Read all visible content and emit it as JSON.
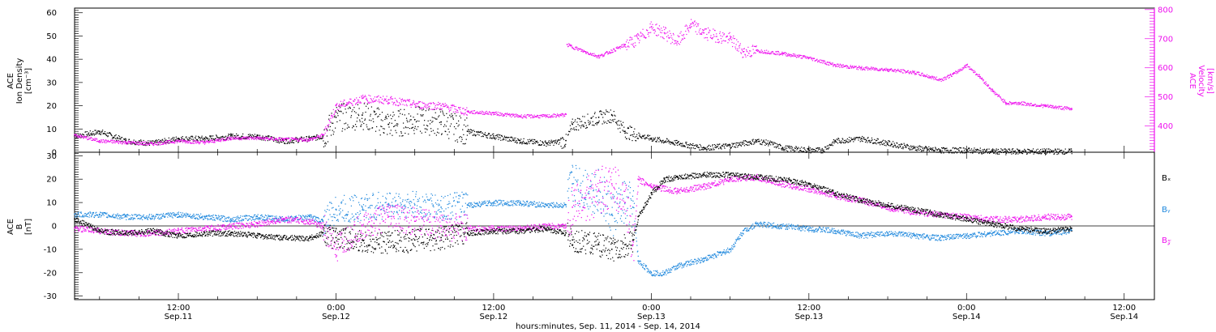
{
  "colors": {
    "black": "#000000",
    "magenta": "#ee11ee",
    "blue": "#1f88dd",
    "axis": "#000000"
  },
  "xlabel": "hours:minutes, Sep. 11, 2014 - Sep. 14, 2014",
  "x_ticks": [
    {
      "hours": 12,
      "time": "12:00",
      "date": "Sep.11"
    },
    {
      "hours": 24,
      "time": "0:00",
      "date": "Sep.12"
    },
    {
      "hours": 36,
      "time": "12:00",
      "date": "Sep.12"
    },
    {
      "hours": 48,
      "time": "0:00",
      "date": "Sep.13"
    },
    {
      "hours": 60,
      "time": "12:00",
      "date": "Sep.13"
    },
    {
      "hours": 72,
      "time": "0:00",
      "date": "Sep.14"
    },
    {
      "hours": 84,
      "time": "12:00",
      "date": "Sep.14"
    }
  ],
  "top_panel": {
    "left_axis_label_lines": [
      "ACE",
      "Ion Density",
      "[cm⁻³]"
    ],
    "right_axis_label_lines": [
      "ACE",
      "Velocity",
      "[km/s]"
    ]
  },
  "bottom_panel": {
    "axis_label_lines": [
      "ACE",
      "B",
      "[nT]"
    ],
    "legend": [
      {
        "label": "Bₓ",
        "color": "#000000"
      },
      {
        "label": "Bᵧ",
        "color": "#1f88dd"
      },
      {
        "label": "B𝓏",
        "color": "#ee11ee"
      }
    ]
  },
  "chart_data": [
    {
      "type": "scatter",
      "x_units": "hours since Sep. 11, 2014 00:00",
      "xlim": [
        4.1,
        86.3
      ],
      "left_ylim": [
        0,
        62
      ],
      "left_yticks": [
        0,
        10,
        20,
        30,
        40,
        50,
        60
      ],
      "right_ylim": [
        310,
        805
      ],
      "right_yticks": [
        400,
        500,
        600,
        700,
        800
      ],
      "series": [
        {
          "axis": "left",
          "color": "#000000",
          "points": [
            [
              4.1,
              7
            ],
            [
              6,
              9
            ],
            [
              8,
              5
            ],
            [
              10,
              4
            ],
            [
              12,
              6
            ],
            [
              14,
              6
            ],
            [
              16,
              7
            ],
            [
              18,
              7
            ],
            [
              20,
              5
            ],
            [
              22,
              6
            ],
            [
              23,
              7
            ],
            [
              24,
              15
            ],
            [
              26,
              16
            ],
            [
              28,
              12
            ],
            [
              30,
              14
            ],
            [
              32,
              13
            ],
            [
              34,
              9
            ],
            [
              36,
              7
            ],
            [
              38,
              5
            ],
            [
              40,
              4
            ],
            [
              41.5,
              5
            ],
            [
              42,
              12
            ],
            [
              44,
              15
            ],
            [
              45,
              16
            ],
            [
              46,
              9
            ],
            [
              48,
              6
            ],
            [
              50,
              4
            ],
            [
              52,
              2
            ],
            [
              54,
              3
            ],
            [
              56,
              5
            ],
            [
              57,
              4
            ],
            [
              58,
              2
            ],
            [
              60,
              1
            ],
            [
              61,
              1
            ],
            [
              62,
              5
            ],
            [
              64,
              6
            ],
            [
              66,
              4
            ],
            [
              68,
              2
            ],
            [
              70,
              1
            ],
            [
              72,
              1
            ],
            [
              74,
              0.5
            ],
            [
              76,
              0.5
            ],
            [
              78,
              0.5
            ],
            [
              80,
              0.5
            ]
          ]
        },
        {
          "axis": "right",
          "color": "#ee11ee",
          "points": [
            [
              4.1,
              370
            ],
            [
              6,
              350
            ],
            [
              8,
              345
            ],
            [
              10,
              340
            ],
            [
              12,
              350
            ],
            [
              14,
              345
            ],
            [
              16,
              360
            ],
            [
              18,
              360
            ],
            [
              20,
              355
            ],
            [
              22,
              355
            ],
            [
              23,
              370
            ],
            [
              24,
              470
            ],
            [
              26,
              495
            ],
            [
              28,
              490
            ],
            [
              30,
              475
            ],
            [
              32,
              470
            ],
            [
              34,
              450
            ],
            [
              36,
              445
            ],
            [
              38,
              435
            ],
            [
              40,
              435
            ],
            [
              41.5,
              440
            ],
            [
              41.6,
              680
            ],
            [
              43,
              655
            ],
            [
              44,
              640
            ],
            [
              46,
              680
            ],
            [
              47,
              700
            ],
            [
              48,
              740
            ],
            [
              49,
              720
            ],
            [
              50,
              690
            ],
            [
              51,
              750
            ],
            [
              52,
              720
            ],
            [
              54,
              700
            ],
            [
              55,
              655
            ],
            [
              56,
              660
            ],
            [
              58,
              650
            ],
            [
              60,
              635
            ],
            [
              62,
              610
            ],
            [
              64,
              600
            ],
            [
              66,
              595
            ],
            [
              68,
              585
            ],
            [
              70,
              560
            ],
            [
              71,
              580
            ],
            [
              72,
              610
            ],
            [
              73,
              570
            ],
            [
              74,
              520
            ],
            [
              75,
              480
            ],
            [
              76,
              480
            ],
            [
              78,
              470
            ],
            [
              80,
              460
            ]
          ]
        }
      ]
    },
    {
      "type": "line",
      "x_units": "hours since Sep. 11, 2014 00:00",
      "xlim": [
        4.1,
        86.3
      ],
      "ylim": [
        -31.5,
        31.5
      ],
      "yticks": [
        -30,
        -20,
        -10,
        0,
        10,
        20,
        30
      ],
      "series": [
        {
          "label": "Bₓ",
          "color": "#000000",
          "points": [
            [
              4.1,
              3
            ],
            [
              6,
              -2
            ],
            [
              8,
              -3
            ],
            [
              10,
              -2
            ],
            [
              12,
              -4
            ],
            [
              14,
              -3
            ],
            [
              16,
              -3
            ],
            [
              18,
              -4
            ],
            [
              20,
              -5
            ],
            [
              22,
              -5
            ],
            [
              23,
              -3
            ],
            [
              24,
              -5
            ],
            [
              26,
              -6
            ],
            [
              28,
              -7
            ],
            [
              30,
              -6
            ],
            [
              32,
              -5
            ],
            [
              34,
              -3
            ],
            [
              36,
              -2
            ],
            [
              38,
              -2
            ],
            [
              40,
              -1
            ],
            [
              41.5,
              -3
            ],
            [
              42,
              -6
            ],
            [
              44,
              -8
            ],
            [
              45,
              -10
            ],
            [
              46,
              -8
            ],
            [
              46.6,
              -6
            ],
            [
              47,
              4
            ],
            [
              48,
              14
            ],
            [
              49,
              20
            ],
            [
              50,
              21
            ],
            [
              52,
              22
            ],
            [
              54,
              22
            ],
            [
              56,
              21
            ],
            [
              58,
              20
            ],
            [
              60,
              18
            ],
            [
              62,
              14
            ],
            [
              64,
              11
            ],
            [
              66,
              9
            ],
            [
              68,
              7
            ],
            [
              70,
              5
            ],
            [
              72,
              3
            ],
            [
              74,
              1
            ],
            [
              76,
              -1
            ],
            [
              78,
              -2
            ],
            [
              80,
              -1
            ]
          ]
        },
        {
          "label": "Bᵧ",
          "color": "#1f88dd",
          "points": [
            [
              4.1,
              5
            ],
            [
              6,
              5
            ],
            [
              8,
              4
            ],
            [
              10,
              4
            ],
            [
              12,
              5
            ],
            [
              14,
              4
            ],
            [
              16,
              3
            ],
            [
              18,
              4
            ],
            [
              20,
              3
            ],
            [
              22,
              4
            ],
            [
              23,
              2
            ],
            [
              24,
              7
            ],
            [
              26,
              8
            ],
            [
              28,
              9
            ],
            [
              30,
              9
            ],
            [
              32,
              8
            ],
            [
              34,
              9
            ],
            [
              36,
              10
            ],
            [
              38,
              10
            ],
            [
              40,
              9
            ],
            [
              41.5,
              9
            ],
            [
              42,
              18
            ],
            [
              44,
              15
            ],
            [
              45,
              5
            ],
            [
              46,
              10
            ],
            [
              46.6,
              8
            ],
            [
              47,
              -15
            ],
            [
              48,
              -20
            ],
            [
              49,
              -20
            ],
            [
              50,
              -17
            ],
            [
              52,
              -14
            ],
            [
              54,
              -10
            ],
            [
              55,
              -2
            ],
            [
              56,
              1
            ],
            [
              58,
              0
            ],
            [
              60,
              -1
            ],
            [
              62,
              -2
            ],
            [
              64,
              -4
            ],
            [
              66,
              -3
            ],
            [
              68,
              -4
            ],
            [
              70,
              -5
            ],
            [
              72,
              -4
            ],
            [
              74,
              -3
            ],
            [
              76,
              -2
            ],
            [
              78,
              -3
            ],
            [
              80,
              -2
            ]
          ]
        },
        {
          "label": "B𝓏",
          "color": "#ee11ee",
          "points": [
            [
              4.1,
              -1
            ],
            [
              6,
              -2
            ],
            [
              8,
              -3
            ],
            [
              10,
              -3
            ],
            [
              12,
              -2
            ],
            [
              14,
              -1
            ],
            [
              16,
              0
            ],
            [
              18,
              1
            ],
            [
              20,
              3
            ],
            [
              22,
              2
            ],
            [
              23,
              0
            ],
            [
              24,
              -10
            ],
            [
              26,
              0
            ],
            [
              28,
              4
            ],
            [
              30,
              2
            ],
            [
              32,
              0
            ],
            [
              34,
              -1
            ],
            [
              36,
              -1
            ],
            [
              38,
              -1
            ],
            [
              40,
              0
            ],
            [
              41.5,
              0
            ],
            [
              42,
              8
            ],
            [
              44,
              15
            ],
            [
              45,
              18
            ],
            [
              46,
              10
            ],
            [
              46.6,
              -8
            ],
            [
              47,
              20
            ],
            [
              48,
              17
            ],
            [
              50,
              15
            ],
            [
              52,
              17
            ],
            [
              54,
              20
            ],
            [
              56,
              21
            ],
            [
              58,
              18
            ],
            [
              60,
              16
            ],
            [
              62,
              13
            ],
            [
              64,
              11
            ],
            [
              66,
              8
            ],
            [
              68,
              6
            ],
            [
              70,
              5
            ],
            [
              72,
              4
            ],
            [
              74,
              3
            ],
            [
              76,
              3
            ],
            [
              78,
              4
            ],
            [
              80,
              4
            ]
          ]
        }
      ]
    }
  ]
}
